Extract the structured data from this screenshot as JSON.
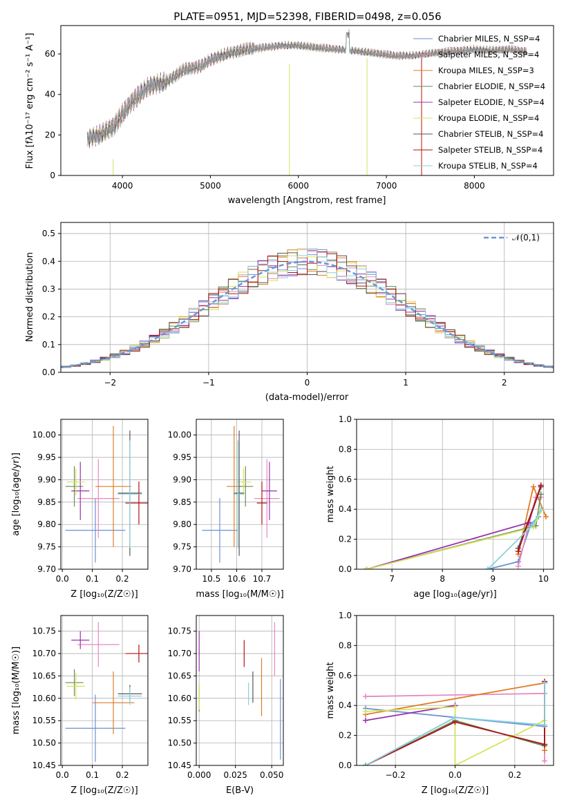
{
  "colors": {
    "Chabrier MILES": "#6b8fd6",
    "Salpeter MILES": "#e887c0",
    "Kroupa MILES": "#e07b22",
    "Chabrier ELODIE": "#6a8a55",
    "Salpeter ELODIE": "#9b2fae",
    "Kroupa ELODIE": "#d6e35a",
    "Chabrier STELIB": "#555555",
    "Salpeter STELIB": "#b01212",
    "Kroupa STELIB": "#88d0dc",
    "normal": "#6a95d8",
    "grid": "#b0b0b0"
  },
  "chart_data": [
    {
      "id": "spectrum",
      "type": "line",
      "title": "PLATE=0951, MJD=52398, FIBERID=0498, z=0.056",
      "xlabel": "wavelength [Angstrom, rest frame]",
      "ylabel": "Flux [fλ10⁻¹⁷ erg cm⁻² s⁻¹ A⁻¹]",
      "xlim": [
        3300,
        8900
      ],
      "ylim": [
        0,
        74
      ],
      "xticks": [
        4000,
        5000,
        6000,
        7000,
        8000
      ],
      "yticks": [
        0,
        20,
        40,
        60
      ],
      "grid": false,
      "legend_position": "top-right",
      "continuum_knots": [
        [
          3600,
          18
        ],
        [
          3750,
          20
        ],
        [
          3900,
          24
        ],
        [
          4000,
          30
        ],
        [
          4100,
          36
        ],
        [
          4300,
          44
        ],
        [
          4500,
          46
        ],
        [
          4700,
          52
        ],
        [
          4900,
          54
        ],
        [
          5000,
          57
        ],
        [
          5200,
          60
        ],
        [
          5400,
          62
        ],
        [
          5600,
          63
        ],
        [
          5800,
          64
        ],
        [
          6000,
          64
        ],
        [
          6200,
          63
        ],
        [
          6500,
          62
        ],
        [
          6700,
          61
        ],
        [
          6900,
          60
        ],
        [
          7100,
          59
        ],
        [
          7300,
          59
        ],
        [
          7500,
          60
        ],
        [
          7700,
          61
        ],
        [
          8000,
          62
        ],
        [
          8200,
          61.5
        ],
        [
          8400,
          62
        ],
        [
          8600,
          61
        ]
      ],
      "series": [
        {
          "name": "Chabrier MILES, N_SSP=4"
        },
        {
          "name": "Salpeter MILES, N_SSP=4"
        },
        {
          "name": "Kroupa MILES, N_SSP=3"
        },
        {
          "name": "Chabrier ELODIE, N_SSP=4"
        },
        {
          "name": "Salpeter ELODIE, N_SSP=4"
        },
        {
          "name": "Kroupa ELODIE, N_SSP=4"
        },
        {
          "name": "Chabrier STELIB, N_SSP=4"
        },
        {
          "name": "Salpeter STELIB, N_SSP=4"
        },
        {
          "name": "Kroupa STELIB, N_SSP=4"
        }
      ]
    },
    {
      "id": "residuals",
      "type": "bar",
      "xlabel": "(data-model)/error",
      "ylabel": "Normed distribution",
      "xlim": [
        -2.5,
        2.5
      ],
      "ylim": [
        0,
        0.54
      ],
      "xticks": [
        -2,
        -1,
        0,
        1,
        2
      ],
      "yticks": [
        0.0,
        0.1,
        0.2,
        0.3,
        0.4,
        0.5
      ],
      "grid": true,
      "bin_width": 0.1,
      "reference_curve": {
        "label": "𝒩(0,1)",
        "mean": 0,
        "sigma": 1,
        "legend_position": "top-right"
      }
    },
    {
      "id": "age_vs_Z",
      "type": "scatter",
      "xlabel": "Z [log₁₀(Z/Z☉)]",
      "ylabel": "age  [log₁₀(age/yr)]",
      "xlim": [
        -0.005,
        0.285
      ],
      "ylim": [
        9.7,
        10.035
      ],
      "xticks": [
        0.0,
        0.1,
        0.2
      ],
      "yticks": [
        9.7,
        9.75,
        9.8,
        9.85,
        9.9,
        9.95,
        10.0
      ],
      "grid": true,
      "points": [
        {
          "model": "Chabrier MILES",
          "x": 0.11,
          "xerr": 0.1,
          "y": 9.787,
          "yerr": 0.072
        },
        {
          "model": "Salpeter MILES",
          "x": 0.12,
          "xerr": 0.07,
          "y": 9.858,
          "yerr": 0.088
        },
        {
          "model": "Kroupa MILES",
          "x": 0.17,
          "xerr": 0.06,
          "y": 9.885,
          "yerr": 0.135
        },
        {
          "model": "Chabrier ELODIE",
          "x": 0.04,
          "xerr": 0.03,
          "y": 9.885,
          "yerr": 0.045
        },
        {
          "model": "Salpeter ELODIE",
          "x": 0.06,
          "xerr": 0.03,
          "y": 9.875,
          "yerr": 0.065
        },
        {
          "model": "Kroupa ELODIE",
          "x": 0.045,
          "xerr": 0.03,
          "y": 9.895,
          "yerr": 0.03
        },
        {
          "model": "Chabrier STELIB",
          "x": 0.225,
          "xerr": 0.04,
          "y": 9.87,
          "yerr": 0.14
        },
        {
          "model": "Salpeter STELIB",
          "x": 0.255,
          "xerr": 0.045,
          "y": 9.848,
          "yerr": 0.048
        },
        {
          "model": "Kroupa STELIB",
          "x": 0.225,
          "xerr": 0.04,
          "y": 9.868,
          "yerr": 0.12
        }
      ]
    },
    {
      "id": "age_vs_mass",
      "type": "scatter",
      "xlabel": "mass [log₁₀(M/M☉)]",
      "ylabel": "",
      "xlim": [
        10.44,
        10.785
      ],
      "ylim": [
        9.7,
        10.035
      ],
      "xticks": [
        10.5,
        10.6,
        10.7
      ],
      "yticks": [
        9.7,
        9.75,
        9.8,
        9.85,
        9.9,
        9.95,
        10.0
      ],
      "grid": true,
      "points": [
        {
          "model": "Chabrier MILES",
          "x": 10.533,
          "xerr": 0.07,
          "y": 9.787,
          "yerr": 0.072
        },
        {
          "model": "Salpeter MILES",
          "x": 10.72,
          "xerr": 0.05,
          "y": 9.858,
          "yerr": 0.088
        },
        {
          "model": "Kroupa MILES",
          "x": 10.59,
          "xerr": 0.03,
          "y": 9.885,
          "yerr": 0.135
        },
        {
          "model": "Chabrier ELODIE",
          "x": 10.635,
          "xerr": 0.03,
          "y": 9.885,
          "yerr": 0.045
        },
        {
          "model": "Salpeter ELODIE",
          "x": 10.73,
          "xerr": 0.03,
          "y": 9.875,
          "yerr": 0.065
        },
        {
          "model": "Kroupa ELODIE",
          "x": 10.627,
          "xerr": 0.03,
          "y": 9.895,
          "yerr": 0.03
        },
        {
          "model": "Chabrier STELIB",
          "x": 10.61,
          "xerr": 0.02,
          "y": 9.87,
          "yerr": 0.14
        },
        {
          "model": "Salpeter STELIB",
          "x": 10.7,
          "xerr": 0.02,
          "y": 9.848,
          "yerr": 0.048
        },
        {
          "model": "Kroupa STELIB",
          "x": 10.605,
          "xerr": 0.02,
          "y": 9.868,
          "yerr": 0.12
        }
      ]
    },
    {
      "id": "mass_weight_vs_age",
      "type": "line",
      "xlabel": "age  [log₁₀(age/yr)]",
      "ylabel": "mass weight",
      "xlim": [
        6.3,
        10.2
      ],
      "ylim": [
        0,
        1.0
      ],
      "xticks": [
        7,
        8,
        9,
        10
      ],
      "yticks": [
        0.0,
        0.2,
        0.4,
        0.6,
        0.8,
        1.0
      ],
      "grid": true,
      "series": [
        {
          "model": "Chabrier MILES",
          "points": [
            [
              8.9,
              0.0
            ],
            [
              9.5,
              0.05
            ],
            [
              9.75,
              0.3
            ],
            [
              9.9,
              0.35
            ]
          ]
        },
        {
          "model": "Salpeter MILES",
          "points": [
            [
              9.5,
              0.02
            ],
            [
              9.85,
              0.48
            ],
            [
              9.95,
              0.48
            ]
          ]
        },
        {
          "model": "Kroupa MILES",
          "points": [
            [
              9.5,
              0.1
            ],
            [
              9.8,
              0.55
            ],
            [
              10.05,
              0.35
            ]
          ]
        },
        {
          "model": "Chabrier ELODIE",
          "points": [
            [
              6.5,
              0.0
            ],
            [
              9.85,
              0.29
            ],
            [
              9.95,
              0.5
            ]
          ]
        },
        {
          "model": "Salpeter ELODIE",
          "points": [
            [
              6.5,
              0.0
            ],
            [
              9.7,
              0.31
            ],
            [
              9.95,
              0.55
            ]
          ]
        },
        {
          "model": "Kroupa ELODIE",
          "points": [
            [
              6.5,
              0.0
            ],
            [
              9.8,
              0.28
            ],
            [
              9.95,
              0.39
            ]
          ]
        },
        {
          "model": "Chabrier STELIB",
          "points": [
            [
              9.5,
              0.14
            ],
            [
              9.95,
              0.55
            ]
          ]
        },
        {
          "model": "Salpeter STELIB",
          "points": [
            [
              9.5,
              0.12
            ],
            [
              9.95,
              0.56
            ]
          ]
        },
        {
          "model": "Kroupa STELIB",
          "points": [
            [
              8.9,
              0.0
            ],
            [
              9.8,
              0.3
            ],
            [
              9.95,
              0.4
            ]
          ]
        }
      ]
    },
    {
      "id": "mass_vs_Z",
      "type": "scatter",
      "xlabel": "Z [log₁₀(Z/Z☉)]",
      "ylabel": "mass [log₁₀(M/M☉)]",
      "xlim": [
        -0.005,
        0.285
      ],
      "ylim": [
        10.45,
        10.785
      ],
      "xticks": [
        0.0,
        0.1,
        0.2
      ],
      "yticks": [
        10.45,
        10.5,
        10.55,
        10.6,
        10.65,
        10.7,
        10.75
      ],
      "grid": true,
      "points": [
        {
          "model": "Chabrier MILES",
          "x": 0.11,
          "xerr": 0.1,
          "y": 10.533,
          "yerr": 0.075
        },
        {
          "model": "Salpeter MILES",
          "x": 0.12,
          "xerr": 0.07,
          "y": 10.72,
          "yerr": 0.05
        },
        {
          "model": "Kroupa MILES",
          "x": 0.17,
          "xerr": 0.07,
          "y": 10.59,
          "yerr": 0.07
        },
        {
          "model": "Chabrier ELODIE",
          "x": 0.04,
          "xerr": 0.03,
          "y": 10.635,
          "yerr": 0.03
        },
        {
          "model": "Salpeter ELODIE",
          "x": 0.06,
          "xerr": 0.03,
          "y": 10.73,
          "yerr": 0.02
        },
        {
          "model": "Kroupa ELODIE",
          "x": 0.045,
          "xerr": 0.03,
          "y": 10.627,
          "yerr": 0.03
        },
        {
          "model": "Chabrier STELIB",
          "x": 0.225,
          "xerr": 0.04,
          "y": 10.61,
          "yerr": 0.02
        },
        {
          "model": "Salpeter STELIB",
          "x": 0.255,
          "xerr": 0.045,
          "y": 10.7,
          "yerr": 0.02
        },
        {
          "model": "Kroupa STELIB",
          "x": 0.225,
          "xerr": 0.04,
          "y": 10.605,
          "yerr": 0.02
        }
      ]
    },
    {
      "id": "mass_vs_EBV",
      "type": "scatter",
      "xlabel": "E(B-V)",
      "ylabel": "",
      "xlim": [
        -0.002,
        0.058
      ],
      "ylim": [
        10.45,
        10.785
      ],
      "xticks": [
        0.0,
        0.025,
        0.05
      ],
      "yticks": [
        10.45,
        10.5,
        10.55,
        10.6,
        10.65,
        10.7,
        10.75
      ],
      "grid": true,
      "points": [
        {
          "model": "Chabrier MILES",
          "x": 0.056,
          "y": 10.553,
          "yerr": 0.09
        },
        {
          "model": "Salpeter MILES",
          "x": 0.052,
          "y": 10.71,
          "yerr": 0.06
        },
        {
          "model": "Kroupa MILES",
          "x": 0.043,
          "y": 10.625,
          "yerr": 0.065
        },
        {
          "model": "Chabrier ELODIE",
          "x": 0.0,
          "y": 10.6,
          "yerr": 0.03
        },
        {
          "model": "Salpeter ELODIE",
          "x": 0.0,
          "y": 10.705,
          "yerr": 0.045
        },
        {
          "model": "Kroupa ELODIE",
          "x": 0.0,
          "y": 10.605,
          "yerr": 0.03
        },
        {
          "model": "Chabrier STELIB",
          "x": 0.037,
          "y": 10.625,
          "yerr": 0.035
        },
        {
          "model": "Salpeter STELIB",
          "x": 0.031,
          "y": 10.7,
          "yerr": 0.03
        },
        {
          "model": "Kroupa STELIB",
          "x": 0.034,
          "y": 10.61,
          "yerr": 0.025
        }
      ]
    },
    {
      "id": "mass_weight_vs_Z",
      "type": "line",
      "xlabel": "Z [log₁₀(Z/Z☉)]",
      "ylabel": "mass weight",
      "xlim": [
        -0.33,
        0.33
      ],
      "ylim": [
        0,
        1.0
      ],
      "xticks": [
        -0.2,
        0.0,
        0.2
      ],
      "yticks": [
        0.0,
        0.2,
        0.4,
        0.6,
        0.8,
        1.0
      ],
      "grid": true,
      "series": [
        {
          "model": "Chabrier MILES",
          "points": [
            [
              -0.3,
              0.38
            ],
            [
              0.3,
              0.26
            ],
            [
              0.0,
              0.32
            ],
            [
              -0.3,
              0.0
            ]
          ]
        },
        {
          "model": "Salpeter MILES",
          "points": [
            [
              -0.3,
              0.46
            ],
            [
              0.3,
              0.48
            ],
            [
              0.3,
              0.03
            ]
          ]
        },
        {
          "model": "Kroupa MILES",
          "points": [
            [
              -0.3,
              0.34
            ],
            [
              0.3,
              0.55
            ],
            [
              0.3,
              0.1
            ]
          ]
        },
        {
          "model": "Chabrier ELODIE",
          "points": [
            [
              -0.3,
              0.0
            ],
            [
              0.0,
              0.3
            ],
            [
              0.3,
              0.13
            ],
            [
              0.3,
              0.55
            ]
          ]
        },
        {
          "model": "Salpeter ELODIE",
          "points": [
            [
              -0.3,
              0.3
            ],
            [
              0.0,
              0.4
            ]
          ]
        },
        {
          "model": "Kroupa ELODIE",
          "points": [
            [
              -0.3,
              0.36
            ],
            [
              0.0,
              0.39
            ],
            [
              0.0,
              0.0
            ],
            [
              0.3,
              0.3
            ]
          ]
        },
        {
          "model": "Chabrier STELIB",
          "points": [
            [
              0.3,
              0.14
            ],
            [
              0.3,
              0.55
            ]
          ]
        },
        {
          "model": "Salpeter STELIB",
          "points": [
            [
              -0.3,
              0.0
            ],
            [
              0.0,
              0.29
            ],
            [
              0.3,
              0.14
            ],
            [
              0.3,
              0.56
            ]
          ]
        },
        {
          "model": "Kroupa STELIB",
          "points": [
            [
              -0.3,
              0.0
            ],
            [
              0.0,
              0.32
            ],
            [
              0.3,
              0.27
            ],
            [
              0.3,
              0.55
            ]
          ]
        }
      ]
    }
  ]
}
